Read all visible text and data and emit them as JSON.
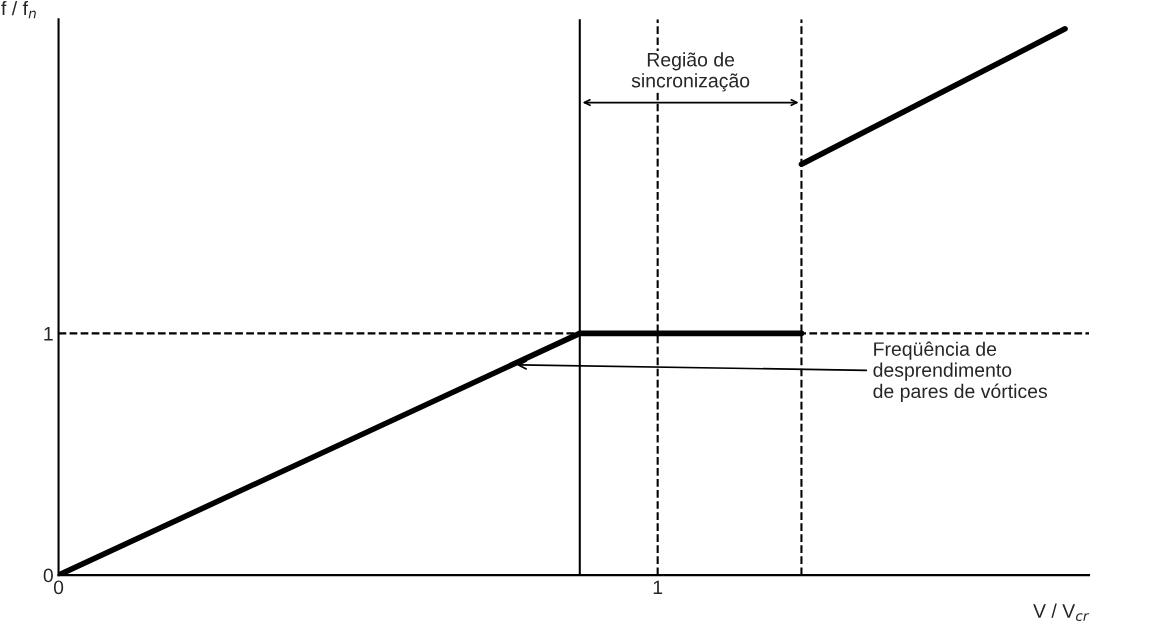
{
  "chart_data": {
    "type": "line",
    "xlabel": "V / V$_{cr}$",
    "ylabel": "f / f$_{n}$",
    "series": [
      {
        "color": "#000000",
        "x": [
          0,
          0.87,
          1.24
        ],
        "values": [
          0,
          1,
          1
        ]
      },
      {
        "color": "#000000",
        "x": [
          1.24,
          1.68
        ],
        "values": [
          1.7,
          2.26
        ]
      }
    ],
    "xlim": [
      0,
      1.72
    ],
    "ylim": [
      0,
      2.3
    ],
    "xticks": [
      0,
      1
    ],
    "yticks": [
      0,
      1
    ],
    "ref_lines": [
      {
        "axis": "y",
        "value": 1,
        "line_style": "dashed",
        "color": "#000000"
      },
      {
        "axis": "x",
        "value": 1,
        "line_style": "dashed",
        "color": "#000000"
      },
      {
        "axis": "x",
        "value": 0.87,
        "line_style": "solid",
        "color": "#000000"
      },
      {
        "axis": "x",
        "value": 1.24,
        "line_style": "dashed",
        "color": "#000000"
      }
    ],
    "annotations": [
      {
        "text": "Freqüência de\ndesprendimento\nde pares de vórtices",
        "x": 0.76,
        "y": 0.87
      },
      "Região de\nsincronização"
    ],
    "grid": false,
    "legend": false,
    "marker": "none",
    "line_style": "solid"
  }
}
